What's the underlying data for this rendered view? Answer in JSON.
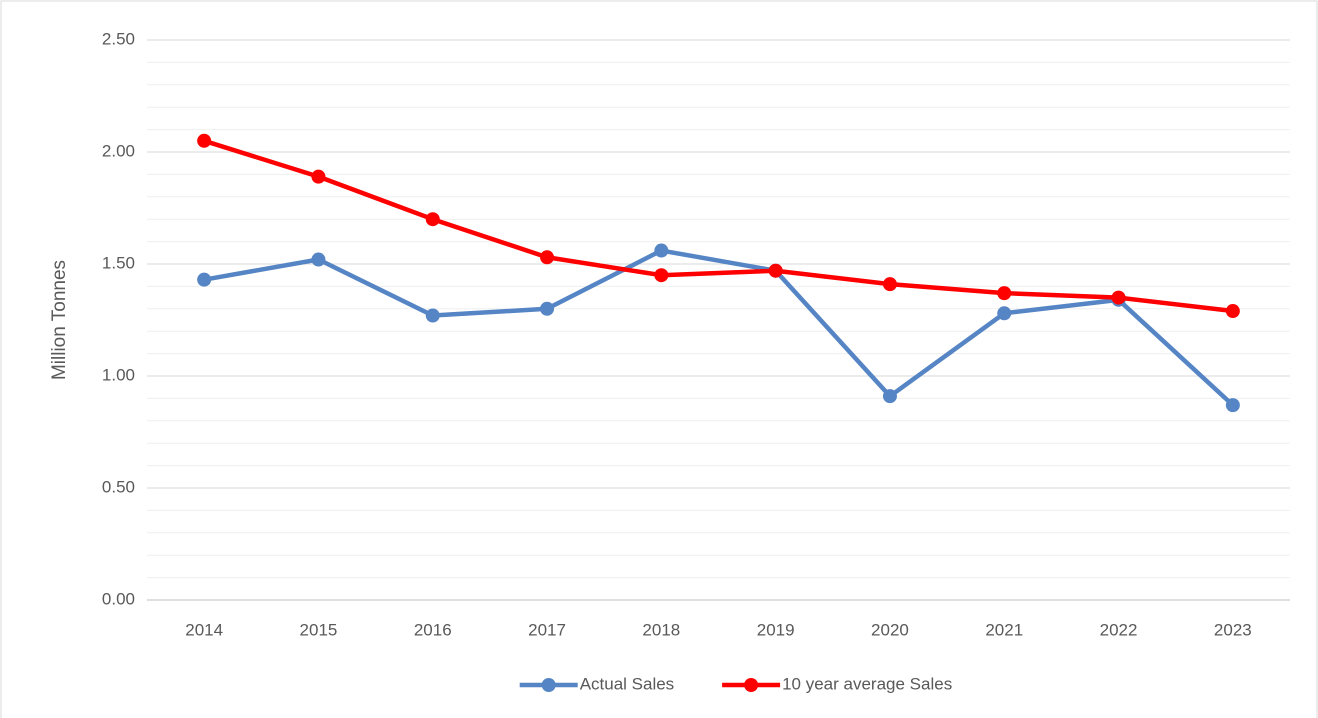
{
  "chart_data": {
    "type": "line",
    "y_label": "Million Tonnes",
    "categories": [
      "2014",
      "2015",
      "2016",
      "2017",
      "2018",
      "2019",
      "2020",
      "2021",
      "2022",
      "2023"
    ],
    "series": [
      {
        "name": "Actual Sales",
        "color": "#5585c4",
        "values": [
          1.43,
          1.52,
          1.27,
          1.3,
          1.56,
          1.47,
          0.91,
          1.28,
          1.34,
          0.87
        ]
      },
      {
        "name": "10 year average Sales",
        "color": "#ff0000",
        "values": [
          2.05,
          1.89,
          1.7,
          1.53,
          1.45,
          1.47,
          1.41,
          1.37,
          1.35,
          1.29
        ]
      }
    ],
    "ylim": [
      0,
      2.5
    ],
    "yticks": [
      {
        "value": 0,
        "label": "0.00"
      },
      {
        "value": 0.5,
        "label": "0.50"
      },
      {
        "value": 1,
        "label": "1.00"
      },
      {
        "value": 1.5,
        "label": "1.50"
      },
      {
        "value": 2,
        "label": "2.00"
      },
      {
        "value": 2.5,
        "label": "2.50"
      }
    ],
    "grid": true,
    "minor_grid": true,
    "legend": "bottom"
  }
}
